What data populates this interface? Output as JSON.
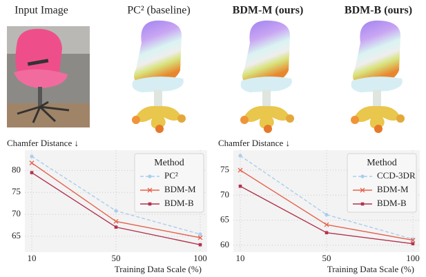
{
  "columns": [
    "Input Image",
    "PC² (baseline)",
    "BDM-M (ours)",
    "BDM-B (ours)"
  ],
  "chart_data": [
    {
      "type": "line",
      "y_label": "Chamfer Distance ↓",
      "x_label": "Training Data Scale (%)",
      "categories": [
        "10",
        "50",
        "100"
      ],
      "ylim": [
        61.4,
        84.6
      ],
      "yticks": [
        65,
        70,
        75,
        80
      ],
      "grid": true,
      "legend_title": "Method",
      "legend": "upper right",
      "series": [
        {
          "name": "PC²",
          "color": "#a9cdee",
          "dashed": true,
          "marker": "circle",
          "values": [
            83.2,
            70.8,
            65.5
          ]
        },
        {
          "name": "BDM-M",
          "color": "#e6604d",
          "dashed": false,
          "marker": "x",
          "values": [
            81.7,
            68.4,
            64.7
          ]
        },
        {
          "name": "BDM-B",
          "color": "#b2324f",
          "dashed": false,
          "marker": "square",
          "values": [
            79.5,
            67.1,
            63.1
          ]
        }
      ]
    },
    {
      "type": "line",
      "y_label": "Chamfer Distance ↓",
      "x_label": "Training Data Scale (%)",
      "categories": [
        "10",
        "50",
        "100"
      ],
      "ylim": [
        58.6,
        79.0
      ],
      "yticks": [
        60,
        65,
        70,
        75
      ],
      "grid": true,
      "legend_title": "Method",
      "legend": "upper right",
      "series": [
        {
          "name": "CCD-3DR",
          "color": "#a9cdee",
          "dashed": true,
          "marker": "circle",
          "values": [
            77.9,
            66.1,
            61.2
          ]
        },
        {
          "name": "BDM-M",
          "color": "#e6604d",
          "dashed": false,
          "marker": "x",
          "values": [
            75.0,
            64.1,
            61.0
          ]
        },
        {
          "name": "BDM-B",
          "color": "#b2324f",
          "dashed": false,
          "marker": "square",
          "values": [
            71.8,
            62.5,
            60.3
          ]
        }
      ]
    }
  ]
}
